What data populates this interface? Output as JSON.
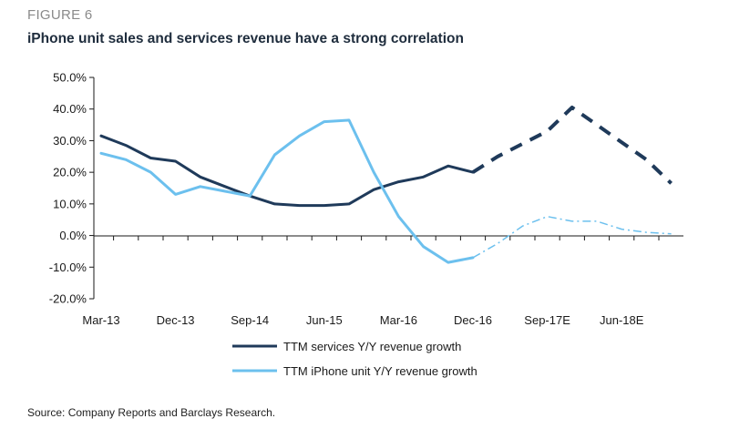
{
  "figure_label": "FIGURE 6",
  "title": "iPhone unit sales and services revenue have a strong correlation",
  "source": "Source: Company Reports and Barclays Research.",
  "colors": {
    "services": "#1f3a5a",
    "iphone": "#6cc0ee",
    "axis": "#1a1a1a"
  },
  "chart_data": {
    "type": "line",
    "title": "iPhone unit sales and services revenue have a strong correlation",
    "xlabel": "",
    "ylabel": "",
    "ylim": [
      -20,
      50
    ],
    "yticks": [
      -20,
      -10,
      0,
      10,
      20,
      30,
      40,
      50
    ],
    "ytick_labels": [
      "-20.0%",
      "-10.0%",
      "0.0%",
      "10.0%",
      "20.0%",
      "30.0%",
      "40.0%",
      "50.0%"
    ],
    "x_tick_labels": [
      {
        "index": 0,
        "label": "Mar-13"
      },
      {
        "index": 3,
        "label": "Dec-13"
      },
      {
        "index": 6,
        "label": "Sep-14"
      },
      {
        "index": 9,
        "label": "Jun-15"
      },
      {
        "index": 12,
        "label": "Mar-16"
      },
      {
        "index": 15,
        "label": "Dec-16"
      },
      {
        "index": 18,
        "label": "Sep-17E"
      },
      {
        "index": 21,
        "label": "Jun-18E"
      }
    ],
    "x_count": 24,
    "forecast_start_index": 15,
    "grid": false,
    "legend_position": "bottom",
    "series": [
      {
        "name": "TTM services Y/Y revenue growth",
        "color": "#1f3a5a",
        "x": [
          0,
          1,
          2,
          3,
          4,
          5,
          6,
          7,
          8,
          9,
          10,
          11,
          12,
          13,
          14,
          15,
          16,
          17,
          18,
          19,
          20,
          21,
          22,
          23
        ],
        "values": [
          31.5,
          28.5,
          24.5,
          23.5,
          18.5,
          15.5,
          12.5,
          10.0,
          9.5,
          9.5,
          10.0,
          14.5,
          17.0,
          18.5,
          22.0,
          20.0,
          25.0,
          29.0,
          33.0,
          40.5,
          35.0,
          29.5,
          24.0,
          16.5
        ]
      },
      {
        "name": "TTM iPhone unit Y/Y revenue growth",
        "color": "#6cc0ee",
        "x": [
          0,
          1,
          2,
          3,
          4,
          5,
          6,
          7,
          8,
          9,
          10,
          11,
          12,
          13,
          14,
          15,
          16,
          17,
          18,
          19,
          20,
          21,
          22,
          23
        ],
        "values": [
          26.0,
          24.0,
          20.0,
          13.0,
          15.5,
          14.0,
          12.5,
          25.5,
          31.5,
          36.0,
          36.5,
          20.0,
          6.0,
          -3.5,
          -8.5,
          -7.0,
          -2.5,
          3.0,
          6.0,
          4.5,
          4.5,
          2.0,
          1.0,
          0.5
        ]
      }
    ]
  }
}
